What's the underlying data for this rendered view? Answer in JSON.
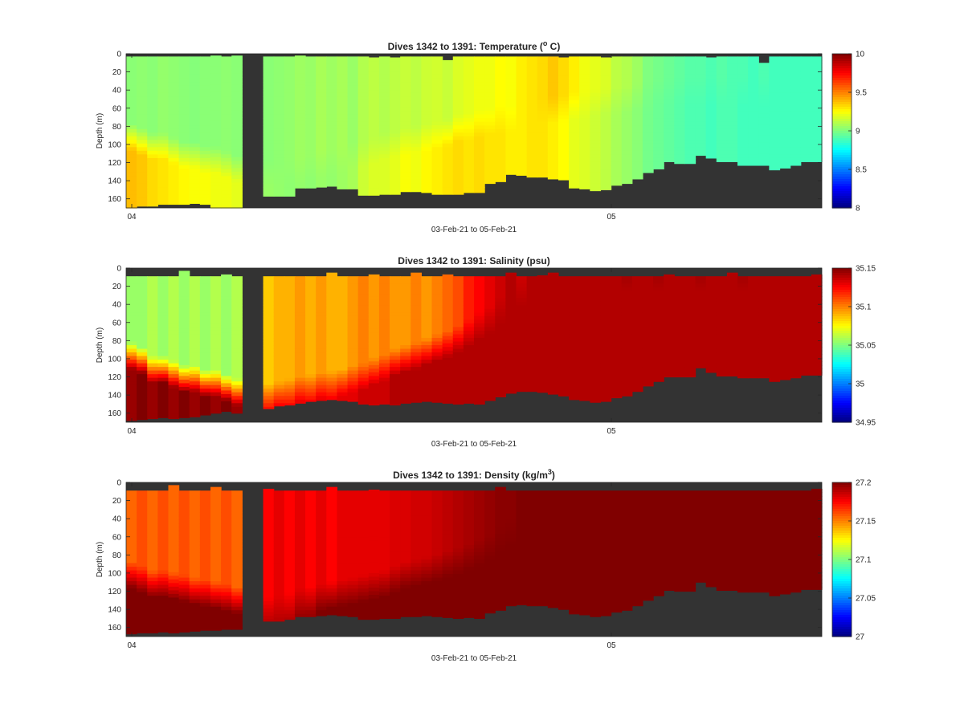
{
  "chart_data": [
    {
      "type": "heatmap",
      "title": "Dives 1342 to 1391: Temperature (",
      "title_sup": "o",
      "title_end": " C)",
      "ylabel": "Depth (m)",
      "xlabel": "03-Feb-21 to 05-Feb-21",
      "x_tick_labels": [
        "04",
        "05"
      ],
      "y_tick_labels": [
        "0",
        "20",
        "40",
        "60",
        "80",
        "100",
        "120",
        "140",
        "160"
      ],
      "ylim": [
        170,
        0
      ],
      "colorbar_ticks": [
        "10",
        "9.5",
        "9",
        "8.5",
        "8"
      ],
      "clim": [
        8,
        10
      ],
      "colormap": "jet",
      "no_data_color": "#333333",
      "bottom_depth_m": [
        170,
        168,
        168,
        166,
        166,
        166,
        165,
        166,
        170,
        170,
        170,
        157,
        157,
        157,
        148,
        148,
        147,
        146,
        149,
        149,
        156,
        156,
        155,
        155,
        152,
        152,
        153,
        155,
        155,
        155,
        153,
        153,
        143,
        141,
        133,
        134,
        136,
        136,
        138,
        139,
        148,
        149,
        151,
        150,
        145,
        143,
        138,
        131,
        127,
        119,
        121,
        121,
        112,
        115,
        119,
        119,
        123,
        123,
        123,
        128,
        126,
        123,
        119,
        119
      ],
      "surface_gap_m": [
        3,
        3,
        3,
        3,
        3,
        3,
        3,
        3,
        2,
        3,
        2,
        3,
        3,
        3,
        2,
        3,
        3,
        3,
        3,
        3,
        3,
        4,
        3,
        4,
        3,
        3,
        3,
        3,
        7,
        3,
        3,
        3,
        3,
        3,
        3,
        3,
        3,
        3,
        3,
        4,
        3,
        3,
        3,
        4,
        3,
        3,
        3,
        3,
        3,
        3,
        3,
        3,
        3,
        4,
        3,
        3,
        3,
        3,
        10,
        3,
        3,
        3,
        3,
        3
      ],
      "upper_value": [
        9.02,
        9.03,
        9.02,
        9.04,
        9.03,
        9.02,
        9.01,
        9.02,
        9.02,
        9.03,
        9.02,
        9.02,
        9.03,
        9.04,
        9.06,
        9.05,
        9.08,
        9.06,
        9.08,
        9.05,
        9.1,
        9.12,
        9.1,
        9.12,
        9.14,
        9.12,
        9.15,
        9.16,
        9.14,
        9.18,
        9.2,
        9.22,
        9.22,
        9.25,
        9.24,
        9.28,
        9.3,
        9.32,
        9.36,
        9.32,
        9.28,
        9.22,
        9.2,
        9.18,
        9.12,
        9.1,
        9.06,
        9.0,
        8.98,
        8.96,
        8.94,
        8.92,
        8.92,
        8.9,
        8.92,
        8.9,
        8.9,
        8.88,
        8.9,
        8.88,
        8.88,
        8.88,
        8.88,
        8.88
      ],
      "lower_value": [
        9.38,
        9.36,
        9.32,
        9.3,
        9.28,
        9.26,
        9.24,
        9.24,
        9.22,
        9.22,
        9.2,
        9.05,
        9.04,
        9.03,
        9.04,
        9.03,
        9.05,
        9.04,
        9.06,
        9.08,
        9.15,
        9.18,
        9.18,
        9.2,
        9.24,
        9.22,
        9.26,
        9.28,
        9.3,
        9.32,
        9.3,
        9.32,
        9.3,
        9.3,
        9.28,
        9.28,
        9.3,
        9.3,
        9.28,
        9.25,
        9.2,
        9.18,
        9.15,
        9.12,
        9.08,
        9.05,
        9.02,
        8.98,
        8.96,
        8.94,
        8.92,
        8.9,
        8.9,
        8.88,
        8.9,
        8.9,
        8.88,
        8.88,
        8.88,
        8.88,
        8.88,
        8.88,
        8.88,
        8.88
      ],
      "transition_depth_m": [
        90,
        95,
        100,
        100,
        105,
        110,
        110,
        115,
        115,
        120,
        125,
        130,
        130,
        130,
        128,
        125,
        120,
        118,
        115,
        110,
        108,
        105,
        100,
        98,
        95,
        92,
        90,
        88,
        85,
        80,
        78,
        75,
        72,
        70,
        70,
        68,
        65,
        62,
        60,
        58,
        55,
        55,
        52,
        50,
        50,
        48,
        45,
        45,
        40,
        40,
        40,
        40,
        40,
        40,
        40,
        40,
        40,
        40,
        40,
        40,
        40,
        40,
        40,
        40
      ]
    },
    {
      "type": "heatmap",
      "title": "Dives 1342 to 1391: Salinity (psu)",
      "ylabel": "Depth (m)",
      "xlabel": "03-Feb-21 to 05-Feb-21",
      "x_tick_labels": [
        "04",
        "05"
      ],
      "y_tick_labels": [
        "0",
        "20",
        "40",
        "60",
        "80",
        "100",
        "120",
        "140",
        "160"
      ],
      "ylim": [
        170,
        0
      ],
      "colorbar_ticks": [
        "35.15",
        "35.1",
        "35.05",
        "35",
        "34.95"
      ],
      "clim": [
        34.95,
        35.15
      ],
      "colormap": "jet",
      "no_data_color": "#333333",
      "bottom_depth_m": [
        168,
        167,
        166,
        165,
        166,
        165,
        164,
        162,
        160,
        158,
        160,
        155,
        152,
        151,
        149,
        147,
        146,
        145,
        146,
        147,
        150,
        151,
        150,
        151,
        149,
        148,
        147,
        148,
        149,
        150,
        149,
        150,
        146,
        142,
        138,
        136,
        136,
        137,
        139,
        141,
        145,
        146,
        148,
        147,
        143,
        141,
        136,
        130,
        125,
        120,
        120,
        120,
        110,
        115,
        119,
        119,
        121,
        121,
        121,
        125,
        123,
        121,
        118,
        118
      ],
      "surface_gap_m": [
        9,
        9,
        9,
        9,
        9,
        3,
        9,
        9,
        9,
        7,
        9,
        9,
        9,
        9,
        9,
        9,
        9,
        5,
        9,
        9,
        9,
        7,
        9,
        9,
        9,
        5,
        9,
        9,
        7,
        9,
        9,
        9,
        9,
        9,
        5,
        9,
        9,
        8,
        5,
        9,
        9,
        9,
        9,
        9,
        9,
        9,
        9,
        9,
        9,
        7,
        9,
        9,
        9,
        9,
        9,
        5,
        9,
        9,
        9,
        9,
        9,
        9,
        9,
        7
      ],
      "upper_value": [
        35.055,
        35.055,
        35.06,
        35.055,
        35.06,
        35.055,
        35.06,
        35.055,
        35.06,
        35.055,
        35.06,
        35.085,
        35.09,
        35.09,
        35.095,
        35.09,
        35.095,
        35.09,
        35.09,
        35.095,
        35.1,
        35.095,
        35.1,
        35.095,
        35.095,
        35.1,
        35.095,
        35.1,
        35.105,
        35.11,
        35.12,
        35.125,
        35.13,
        35.135,
        35.14,
        35.135,
        35.14,
        35.14,
        35.14,
        35.14,
        35.14,
        35.14,
        35.14,
        35.14,
        35.14,
        35.145,
        35.14,
        35.14,
        35.145,
        35.14,
        35.14,
        35.14,
        35.145,
        35.14,
        35.14,
        35.14,
        35.145,
        35.14,
        35.14,
        35.14,
        35.14,
        35.14,
        35.14,
        35.14
      ],
      "lower_value": [
        35.145,
        35.15,
        35.145,
        35.15,
        35.145,
        35.15,
        35.145,
        35.15,
        35.145,
        35.15,
        35.145,
        35.125,
        35.13,
        35.125,
        35.13,
        35.125,
        35.13,
        35.125,
        35.13,
        35.13,
        35.135,
        35.135,
        35.135,
        35.14,
        35.14,
        35.14,
        35.14,
        35.14,
        35.14,
        35.14,
        35.14,
        35.14,
        35.14,
        35.14,
        35.14,
        35.14,
        35.14,
        35.14,
        35.14,
        35.14,
        35.14,
        35.14,
        35.14,
        35.14,
        35.14,
        35.14,
        35.14,
        35.14,
        35.14,
        35.14,
        35.14,
        35.14,
        35.14,
        35.14,
        35.14,
        35.14,
        35.14,
        35.14,
        35.14,
        35.14,
        35.14,
        35.14,
        35.14,
        35.14
      ],
      "transition_depth_m": [
        95,
        100,
        110,
        110,
        115,
        120,
        120,
        125,
        125,
        130,
        135,
        140,
        138,
        135,
        132,
        130,
        128,
        126,
        124,
        120,
        118,
        112,
        108,
        102,
        98,
        95,
        90,
        86,
        82,
        76,
        70,
        62,
        55,
        45,
        35,
        25,
        15,
        9,
        9,
        9,
        9,
        9,
        9,
        9,
        9,
        9,
        9,
        9,
        9,
        9,
        9,
        9,
        9,
        9,
        9,
        9,
        9,
        9,
        9,
        9,
        9,
        9,
        9,
        9
      ]
    },
    {
      "type": "heatmap",
      "title": "Dives 1342 to 1391: Density (kg/m",
      "title_sup": "3",
      "title_end": ")",
      "ylabel": "Depth (m)",
      "xlabel": "03-Feb-21 to 05-Feb-21",
      "x_tick_labels": [
        "04",
        "05"
      ],
      "y_tick_labels": [
        "0",
        "20",
        "40",
        "60",
        "80",
        "100",
        "120",
        "140",
        "160"
      ],
      "ylim": [
        170,
        0
      ],
      "colorbar_ticks": [
        "27.2",
        "27.15",
        "27.1",
        "27.05",
        "27"
      ],
      "clim": [
        27,
        27.2
      ],
      "colormap": "jet",
      "no_data_color": "#333333",
      "bottom_depth_m": [
        167,
        166,
        166,
        165,
        166,
        165,
        164,
        163,
        163,
        162,
        162,
        153,
        153,
        151,
        148,
        148,
        147,
        146,
        147,
        148,
        151,
        151,
        150,
        150,
        148,
        148,
        147,
        148,
        149,
        150,
        149,
        150,
        144,
        141,
        136,
        135,
        136,
        136,
        138,
        140,
        145,
        146,
        148,
        147,
        143,
        141,
        136,
        130,
        125,
        119,
        120,
        120,
        110,
        115,
        119,
        119,
        121,
        121,
        121,
        125,
        123,
        121,
        118,
        118
      ],
      "surface_gap_m": [
        9,
        9,
        9,
        9,
        3,
        9,
        9,
        9,
        5,
        9,
        9,
        7,
        9,
        9,
        9,
        9,
        9,
        5,
        9,
        9,
        9,
        8,
        9,
        9,
        9,
        9,
        9,
        9,
        9,
        9,
        9,
        9,
        9,
        5,
        9,
        9,
        9,
        9,
        9,
        9,
        9,
        9,
        9,
        9,
        9,
        9,
        9,
        9,
        9,
        9,
        9,
        9,
        9,
        9,
        9,
        9,
        9,
        9,
        9,
        9,
        9,
        9,
        9,
        7
      ],
      "upper_value": [
        27.155,
        27.16,
        27.155,
        27.16,
        27.155,
        27.16,
        27.155,
        27.16,
        27.155,
        27.16,
        27.155,
        27.175,
        27.18,
        27.175,
        27.18,
        27.175,
        27.18,
        27.175,
        27.18,
        27.18,
        27.18,
        27.18,
        27.18,
        27.182,
        27.182,
        27.184,
        27.184,
        27.186,
        27.188,
        27.19,
        27.192,
        27.194,
        27.196,
        27.198,
        27.198,
        27.2,
        27.2,
        27.2,
        27.2,
        27.2,
        27.2,
        27.2,
        27.2,
        27.2,
        27.2,
        27.2,
        27.2,
        27.2,
        27.2,
        27.2,
        27.2,
        27.2,
        27.2,
        27.2,
        27.2,
        27.2,
        27.2,
        27.2,
        27.2,
        27.2,
        27.2,
        27.2,
        27.2,
        27.2
      ],
      "lower_value": [
        27.2,
        27.2,
        27.2,
        27.2,
        27.2,
        27.2,
        27.2,
        27.2,
        27.2,
        27.2,
        27.2,
        27.19,
        27.19,
        27.19,
        27.195,
        27.195,
        27.2,
        27.2,
        27.2,
        27.2,
        27.2,
        27.2,
        27.2,
        27.2,
        27.2,
        27.2,
        27.2,
        27.2,
        27.2,
        27.2,
        27.2,
        27.2,
        27.2,
        27.2,
        27.2,
        27.2,
        27.2,
        27.2,
        27.2,
        27.2,
        27.2,
        27.2,
        27.2,
        27.2,
        27.2,
        27.2,
        27.2,
        27.2,
        27.2,
        27.2,
        27.2,
        27.2,
        27.2,
        27.2,
        27.2,
        27.2,
        27.2,
        27.2,
        27.2,
        27.2,
        27.2,
        27.2,
        27.2,
        27.2
      ],
      "transition_depth_m": [
        100,
        105,
        110,
        110,
        112,
        115,
        118,
        120,
        122,
        125,
        128,
        140,
        138,
        135,
        130,
        128,
        125,
        122,
        120,
        118,
        115,
        112,
        110,
        105,
        100,
        98,
        95,
        92,
        88,
        85,
        80,
        75,
        70,
        62,
        55,
        48,
        40,
        32,
        25,
        18,
        12,
        9,
        9,
        9,
        9,
        9,
        9,
        9,
        9,
        9,
        9,
        9,
        9,
        9,
        9,
        9,
        9,
        9,
        9,
        9,
        9,
        9,
        9,
        9
      ]
    }
  ]
}
